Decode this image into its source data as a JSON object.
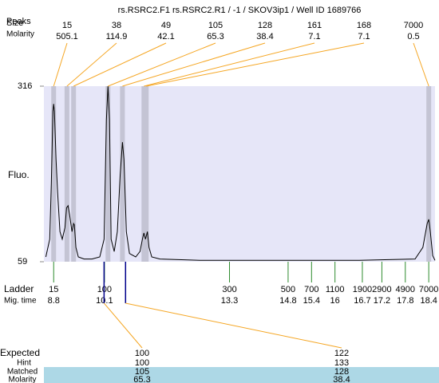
{
  "title": "rs.RSRC2.F1  rs.RSRC2.R1 / -1 / SKOV3ip1 / Well ID 1689766",
  "peaks": {
    "peaks_label": "Peaks",
    "size_label": "Size",
    "molarity_label": "Molarity",
    "size": [
      15,
      38,
      49,
      105,
      128,
      161,
      168,
      7000
    ],
    "molarity": [
      505.1,
      114.9,
      42.1,
      65.3,
      38.4,
      7.1,
      7.1,
      0.5
    ],
    "time": [
      8.8,
      9.14,
      9.31,
      10.19,
      10.56,
      11.11,
      11.17,
      18.4
    ]
  },
  "chart_data": {
    "type": "line",
    "y_label": "Fluo.",
    "color": "#000000",
    "ylim": [
      59,
      316
    ],
    "yticks": [
      59,
      316
    ],
    "xlim": [
      8.55,
      18.56
    ],
    "x": [
      8.6,
      8.7,
      8.74,
      8.78,
      8.8,
      8.82,
      8.86,
      8.9,
      8.96,
      9.02,
      9.09,
      9.13,
      9.17,
      9.21,
      9.27,
      9.31,
      9.33,
      9.37,
      9.43,
      9.58,
      9.78,
      9.98,
      10.09,
      10.15,
      10.19,
      10.23,
      10.27,
      10.35,
      10.43,
      10.5,
      10.56,
      10.6,
      10.66,
      10.74,
      10.9,
      11.01,
      11.07,
      11.11,
      11.15,
      11.2,
      11.24,
      11.31,
      11.52,
      12.54,
      14.58,
      16.62,
      18.05,
      18.25,
      18.36,
      18.4,
      18.44,
      18.5,
      18.56
    ],
    "values": [
      66,
      92,
      173,
      279,
      290,
      279,
      209,
      162,
      103,
      92,
      109,
      138,
      141,
      127,
      103,
      115,
      113,
      80,
      66,
      63,
      63,
      66,
      92,
      267,
      316,
      267,
      92,
      74,
      103,
      185,
      234,
      209,
      103,
      71,
      66,
      74,
      92,
      101,
      92,
      103,
      80,
      66,
      63,
      61,
      61,
      61,
      63,
      80,
      115,
      121,
      103,
      68,
      61
    ]
  },
  "ladder": {
    "label": "Ladder",
    "time_label": "Mig. time",
    "size": [
      15,
      100,
      300,
      500,
      700,
      1100,
      1900,
      2900,
      4900,
      7000
    ],
    "time": [
      8.8,
      10.1,
      13.3,
      14.8,
      15.4,
      16,
      16.7,
      17.2,
      17.8,
      18.4
    ]
  },
  "expected": {
    "label": "Expected",
    "hint_label": "Hint",
    "matched_label": "Matched",
    "molarity_label": "Molarity",
    "values": [
      100,
      122
    ],
    "hint": [
      100,
      133
    ],
    "matched": [
      105,
      128
    ],
    "molarity": [
      65.3,
      38.4
    ],
    "time": [
      10.09,
      10.64
    ]
  }
}
